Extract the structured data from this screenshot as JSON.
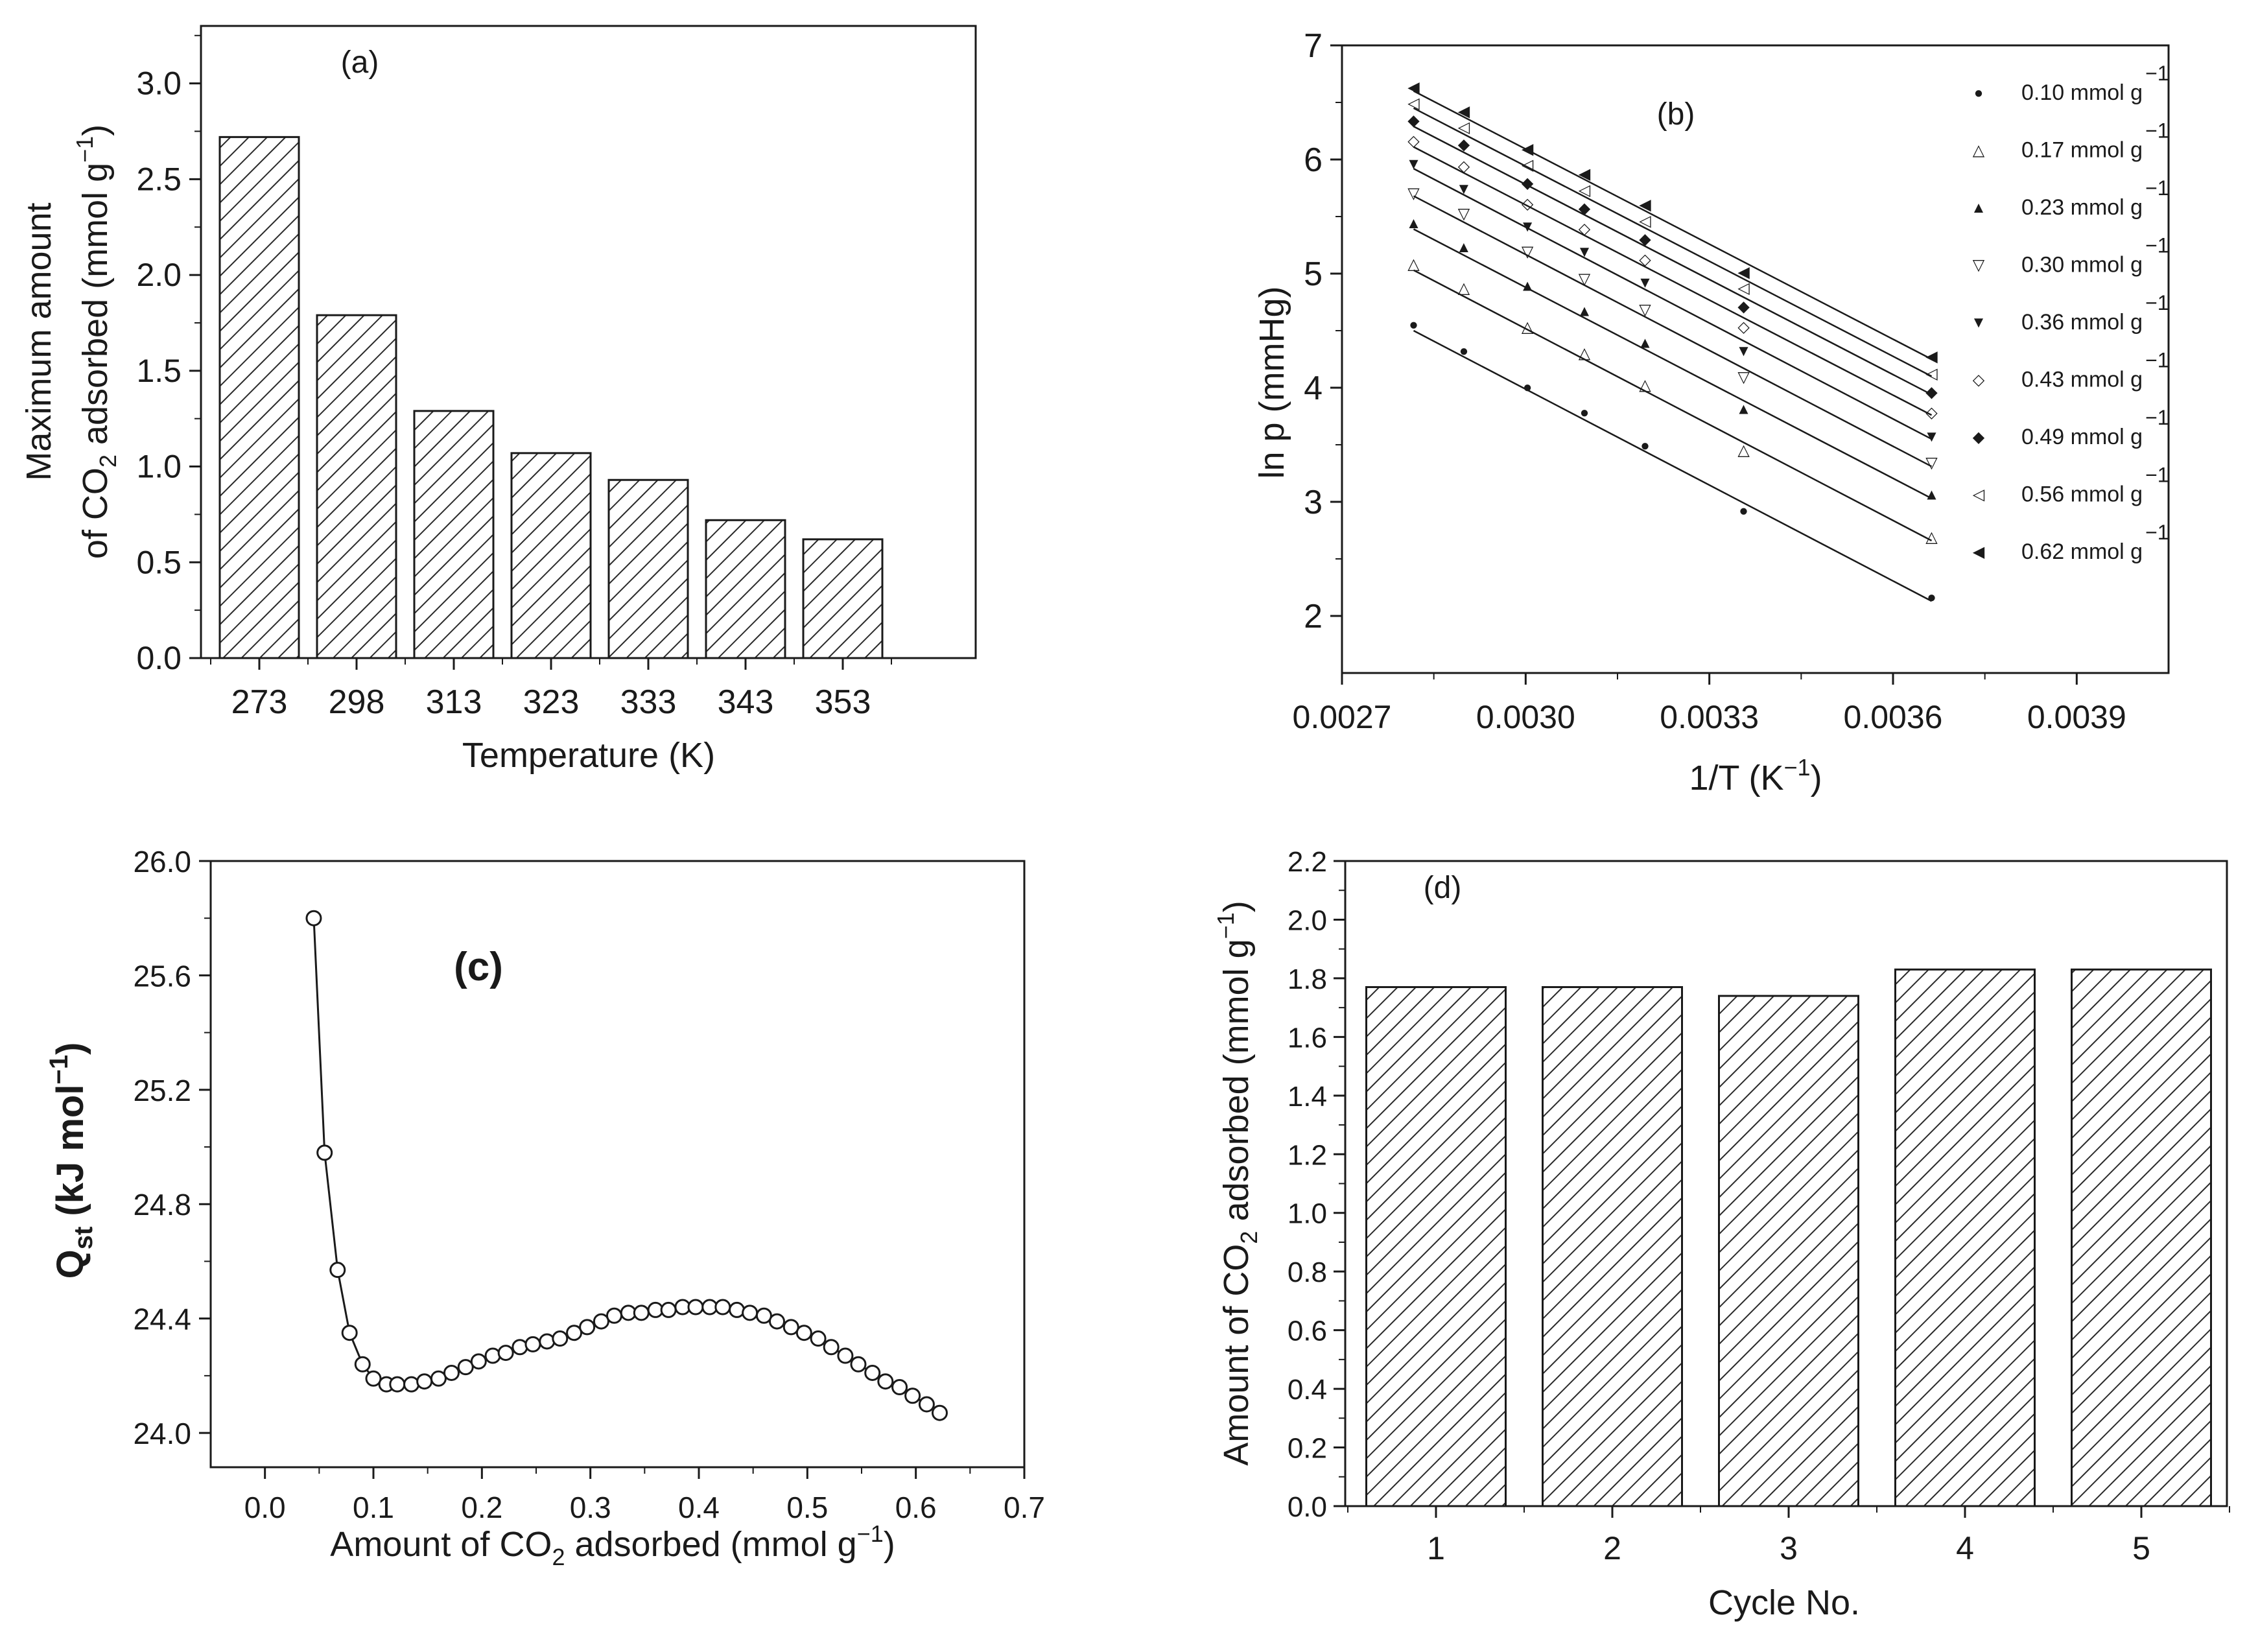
{
  "chart_data": [
    {
      "panel": "(a)",
      "type": "bar",
      "categories": [
        "273",
        "298",
        "313",
        "323",
        "333",
        "343",
        "353"
      ],
      "values": [
        2.72,
        1.79,
        1.29,
        1.07,
        0.93,
        0.72,
        0.62
      ],
      "ylim": [
        0,
        3.3
      ],
      "yticks": [
        "0.0",
        "0.5",
        "1.0",
        "1.5",
        "2.0",
        "2.5",
        "3.0"
      ],
      "xlabel": "Temperature (K)",
      "ylabel_line1": "Maximum amount",
      "ylabel_line2_a": "of CO",
      "ylabel_line2_sub": "2",
      "ylabel_line2_b": " adsorbed (mmol g",
      "ylabel_line2_sup": "−1",
      "ylabel_line2_c": ")",
      "pattern": "hatched"
    },
    {
      "panel": "(b)",
      "type": "scatter",
      "xlim": [
        0.0027,
        0.00405
      ],
      "ylim": [
        1.5,
        7
      ],
      "xticks": [
        "0.0027",
        "0.0030",
        "0.0033",
        "0.0036",
        "0.0039"
      ],
      "yticks": [
        "2",
        "3",
        "4",
        "5",
        "6",
        "7"
      ],
      "xlabel_a": "1/T (K",
      "xlabel_sup": "−1",
      "xlabel_b": ")",
      "ylabel": "ln p (mmHg)",
      "x": [
        0.002817,
        0.002899,
        0.003003,
        0.003096,
        0.003195,
        0.003356,
        0.003663
      ],
      "series": [
        {
          "name": "0.10 mmol g",
          "sup": "−1",
          "marker": "●",
          "values": [
            4.56,
            4.33,
            4.01,
            3.79,
            3.5,
            2.93,
            2.17
          ],
          "fit": [
            4.5,
            2.13
          ]
        },
        {
          "name": "0.17 mmol g",
          "sup": "−1",
          "marker": "△",
          "values": [
            5.09,
            4.88,
            4.54,
            4.31,
            4.03,
            3.46,
            2.7
          ],
          "fit": [
            5.03,
            2.66
          ]
        },
        {
          "name": "0.23 mmol g",
          "sup": "−1",
          "marker": "▲",
          "values": [
            5.45,
            5.24,
            4.9,
            4.68,
            4.4,
            3.82,
            3.07
          ],
          "fit": [
            5.39,
            3.03
          ]
        },
        {
          "name": "0.30 mmol g",
          "sup": "−1",
          "marker": "▽",
          "values": [
            5.71,
            5.53,
            5.2,
            4.96,
            4.69,
            4.1,
            3.35
          ],
          "fit": [
            5.68,
            3.31
          ]
        },
        {
          "name": "0.36 mmol g",
          "sup": "−1",
          "marker": "▼",
          "values": [
            5.97,
            5.75,
            5.42,
            5.2,
            4.93,
            4.33,
            3.58
          ],
          "fit": [
            5.92,
            3.55
          ]
        },
        {
          "name": "0.43 mmol g",
          "sup": "−1",
          "marker": "◇",
          "values": [
            6.17,
            5.95,
            5.62,
            5.4,
            5.13,
            4.54,
            3.79
          ],
          "fit": [
            6.11,
            3.76
          ]
        },
        {
          "name": "0.49 mmol g",
          "sup": "−1",
          "marker": "◆",
          "values": [
            6.35,
            6.14,
            5.8,
            5.58,
            5.31,
            4.72,
            3.97
          ],
          "fit": [
            6.29,
            3.94
          ]
        },
        {
          "name": "0.56 mmol g",
          "sup": "−1",
          "marker": "◁",
          "values": [
            6.5,
            6.29,
            5.96,
            5.74,
            5.47,
            4.88,
            4.13
          ],
          "fit": [
            6.45,
            4.1
          ]
        },
        {
          "name": "0.62 mmol g",
          "sup": "−1",
          "marker": "◀",
          "values": [
            6.64,
            6.43,
            6.1,
            5.88,
            5.61,
            5.02,
            4.28
          ],
          "fit": [
            6.6,
            4.25
          ]
        }
      ],
      "legend_position": "right"
    },
    {
      "panel": "(c)",
      "type": "line",
      "xlim": [
        -0.05,
        0.7
      ],
      "ylim": [
        23.88,
        26.0
      ],
      "xticks": [
        "0.0",
        "0.1",
        "0.2",
        "0.3",
        "0.4",
        "0.5",
        "0.6",
        "0.7"
      ],
      "yticks": [
        "24.0",
        "24.4",
        "24.8",
        "25.2",
        "25.6",
        "26.0"
      ],
      "xlabel_a": "Amount of CO",
      "xlabel_sub": "2",
      "xlabel_b": " adsorbed (mmol g",
      "xlabel_sup": "−1",
      "xlabel_c": ")",
      "ylabel_a": "Q",
      "ylabel_sub": "st",
      "ylabel_b": " (kJ mol",
      "ylabel_sup": "−1",
      "ylabel_c": ")",
      "marker": "open circle",
      "x": [
        0.045,
        0.055,
        0.067,
        0.078,
        0.09,
        0.1,
        0.112,
        0.122,
        0.135,
        0.147,
        0.16,
        0.172,
        0.185,
        0.197,
        0.21,
        0.222,
        0.235,
        0.247,
        0.26,
        0.272,
        0.285,
        0.297,
        0.31,
        0.322,
        0.335,
        0.347,
        0.36,
        0.372,
        0.385,
        0.397,
        0.41,
        0.422,
        0.435,
        0.447,
        0.46,
        0.472,
        0.485,
        0.497,
        0.51,
        0.522,
        0.535,
        0.547,
        0.56,
        0.572,
        0.585,
        0.597,
        0.61,
        0.622
      ],
      "y": [
        25.8,
        24.98,
        24.57,
        24.35,
        24.24,
        24.19,
        24.17,
        24.17,
        24.17,
        24.18,
        24.19,
        24.21,
        24.23,
        24.25,
        24.27,
        24.28,
        24.3,
        24.31,
        24.32,
        24.33,
        24.35,
        24.37,
        24.39,
        24.41,
        24.42,
        24.42,
        24.43,
        24.43,
        24.44,
        24.44,
        24.44,
        24.44,
        24.43,
        24.42,
        24.41,
        24.39,
        24.37,
        24.35,
        24.33,
        24.3,
        24.27,
        24.24,
        24.21,
        24.18,
        24.16,
        24.13,
        24.1,
        24.07
      ]
    },
    {
      "panel": "(d)",
      "type": "bar",
      "categories": [
        "1",
        "2",
        "3",
        "4",
        "5"
      ],
      "values": [
        1.77,
        1.77,
        1.74,
        1.83,
        1.83
      ],
      "ylim": [
        0,
        2.2
      ],
      "yticks": [
        "0.0",
        "0.2",
        "0.4",
        "0.6",
        "0.8",
        "1.0",
        "1.2",
        "1.4",
        "1.6",
        "1.8",
        "2.0",
        "2.2"
      ],
      "xlabel": "Cycle No.",
      "ylabel_a": "Amount  of CO",
      "ylabel_sub": "2",
      "ylabel_b": " adsorbed (mmol g",
      "ylabel_sup": "−1",
      "ylabel_c": ")",
      "pattern": "hatched"
    }
  ]
}
